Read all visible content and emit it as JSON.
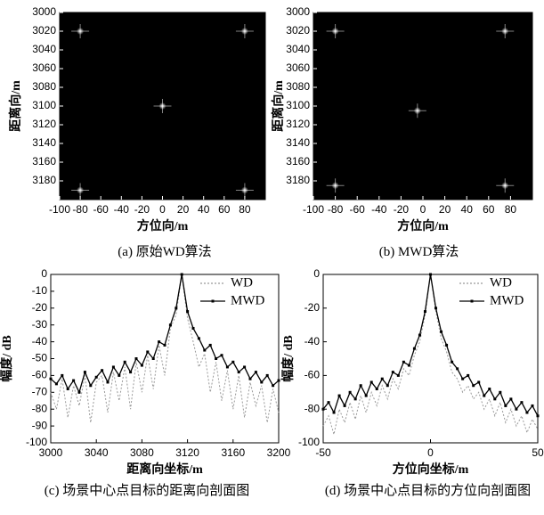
{
  "chart_data": [
    {
      "type": "scatter",
      "caption": "(a) 原始WD算法",
      "xlabel": "方位向/m",
      "ylabel": "距离向/m",
      "x": [
        -80,
        80,
        0,
        -80,
        80
      ],
      "y": [
        3020,
        3020,
        3100,
        3190,
        3190
      ],
      "color": "#ffffff",
      "background": "#000000",
      "xlim": [
        -100,
        100
      ],
      "ylim": [
        3000,
        3200
      ],
      "yinvert": true,
      "xticks": [
        -100,
        -80,
        -60,
        -40,
        -20,
        0,
        20,
        40,
        60,
        80
      ],
      "yticks": [
        3000,
        3020,
        3040,
        3060,
        3080,
        3100,
        3120,
        3140,
        3160,
        3180
      ]
    },
    {
      "type": "scatter",
      "caption": "(b) MWD算法",
      "xlabel": "方位向/m",
      "ylabel": "距离向/m",
      "x": [
        -80,
        75,
        -5,
        -80,
        75
      ],
      "y": [
        3020,
        3020,
        3105,
        3185,
        3185
      ],
      "color": "#ffffff",
      "background": "#000000",
      "xlim": [
        -100,
        100
      ],
      "ylim": [
        3000,
        3200
      ],
      "yinvert": true,
      "xticks": [
        -100,
        -80,
        -60,
        -40,
        -20,
        0,
        20,
        40,
        60,
        80
      ],
      "yticks": [
        3000,
        3020,
        3040,
        3060,
        3080,
        3100,
        3120,
        3140,
        3160,
        3180
      ]
    },
    {
      "type": "line",
      "caption": "(c) 场景中心点目标的距离向剖面图",
      "xlabel": "距离向坐标/m",
      "ylabel": "幅度/ dB",
      "x": [
        3000,
        3005,
        3010,
        3015,
        3020,
        3025,
        3030,
        3035,
        3040,
        3045,
        3050,
        3055,
        3060,
        3065,
        3070,
        3075,
        3080,
        3085,
        3090,
        3095,
        3100,
        3105,
        3110,
        3115,
        3120,
        3125,
        3130,
        3135,
        3140,
        3145,
        3150,
        3155,
        3160,
        3165,
        3170,
        3175,
        3180,
        3185,
        3190,
        3195,
        3200
      ],
      "series": [
        {
          "name": "WD",
          "color": "#999999",
          "dash": true,
          "values": [
            -70,
            -80,
            -62,
            -85,
            -66,
            -78,
            -60,
            -88,
            -64,
            -60,
            -82,
            -58,
            -75,
            -55,
            -80,
            -52,
            -70,
            -48,
            -68,
            -42,
            -60,
            -32,
            -24,
            0,
            -26,
            -40,
            -55,
            -47,
            -70,
            -52,
            -75,
            -57,
            -80,
            -60,
            -85,
            -64,
            -78,
            -66,
            -88,
            -68,
            -82
          ]
        },
        {
          "name": "MWD",
          "color": "#000000",
          "dash": false,
          "values": [
            -62,
            -65,
            -60,
            -68,
            -63,
            -70,
            -58,
            -66,
            -61,
            -57,
            -64,
            -55,
            -60,
            -52,
            -58,
            -50,
            -54,
            -46,
            -50,
            -40,
            -42,
            -30,
            -20,
            0,
            -22,
            -32,
            -38,
            -45,
            -42,
            -50,
            -48,
            -55,
            -52,
            -58,
            -55,
            -62,
            -58,
            -64,
            -60,
            -66,
            -63
          ]
        }
      ],
      "xlim": [
        3000,
        3200
      ],
      "ylim": [
        -100,
        0
      ],
      "xticks": [
        3000,
        3040,
        3080,
        3120,
        3160,
        3200
      ],
      "yticks": [
        0,
        -10,
        -20,
        -30,
        -40,
        -50,
        -60,
        -70,
        -80,
        -90,
        -100
      ],
      "legend": "upper right"
    },
    {
      "type": "line",
      "caption": "(d) 场景中心点目标的方位向剖面图",
      "xlabel": "方位向坐标/m",
      "ylabel": "幅度/ dB",
      "x": [
        -50,
        -47.5,
        -45,
        -42.5,
        -40,
        -37.5,
        -35,
        -32.5,
        -30,
        -27.5,
        -25,
        -22.5,
        -20,
        -17.5,
        -15,
        -12.5,
        -10,
        -7.5,
        -5,
        -2.5,
        0,
        2.5,
        5,
        7.5,
        10,
        12.5,
        15,
        17.5,
        20,
        22.5,
        25,
        27.5,
        30,
        32.5,
        35,
        37.5,
        40,
        42.5,
        45,
        47.5,
        50
      ],
      "series": [
        {
          "name": "WD",
          "color": "#999999",
          "dash": true,
          "values": [
            -90,
            -84,
            -95,
            -80,
            -88,
            -76,
            -86,
            -72,
            -82,
            -70,
            -78,
            -66,
            -74,
            -62,
            -68,
            -56,
            -60,
            -48,
            -40,
            -24,
            0,
            -22,
            -38,
            -46,
            -58,
            -62,
            -70,
            -66,
            -74,
            -70,
            -80,
            -74,
            -84,
            -76,
            -88,
            -80,
            -90,
            -84,
            -94,
            -86,
            -92
          ]
        },
        {
          "name": "MWD",
          "color": "#000000",
          "dash": false,
          "values": [
            -80,
            -76,
            -82,
            -72,
            -78,
            -70,
            -74,
            -66,
            -72,
            -64,
            -68,
            -62,
            -66,
            -58,
            -60,
            -52,
            -54,
            -44,
            -36,
            -22,
            0,
            -20,
            -34,
            -42,
            -52,
            -56,
            -62,
            -60,
            -66,
            -64,
            -72,
            -68,
            -74,
            -70,
            -78,
            -74,
            -80,
            -76,
            -82,
            -78,
            -84
          ]
        }
      ],
      "xlim": [
        -50,
        50
      ],
      "ylim": [
        -100,
        0
      ],
      "xticks": [
        -50,
        0,
        50
      ],
      "yticks": [
        0,
        -20,
        -40,
        -60,
        -80,
        -100
      ],
      "legend": "upper right"
    }
  ]
}
